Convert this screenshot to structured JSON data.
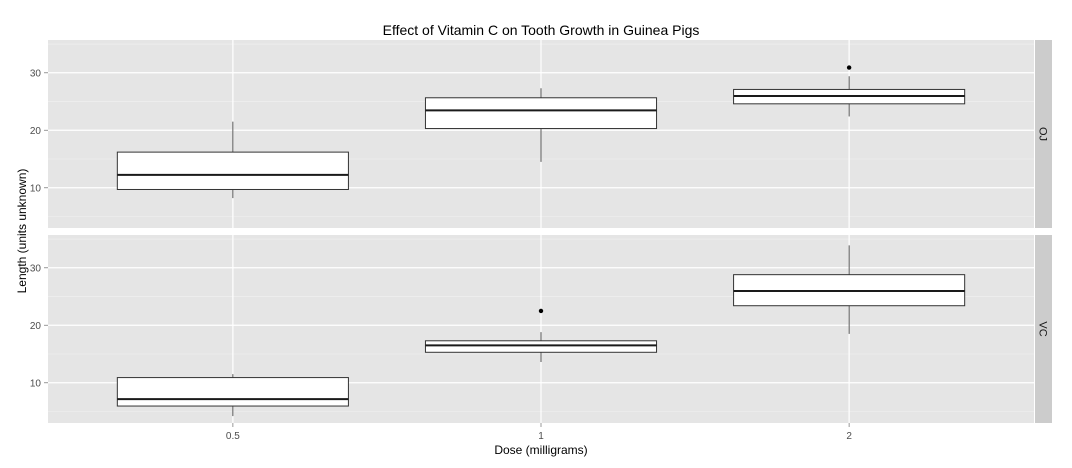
{
  "chart_data": {
    "type": "boxplot",
    "title": "Effect of Vitamin C on Tooth Growth in Guinea Pigs",
    "xlabel": "Dose (milligrams)",
    "ylabel": "Length (units unknown)",
    "categories": [
      "0.5",
      "1",
      "2"
    ],
    "y_ticks": [
      10,
      20,
      30
    ],
    "ylim": [
      3.0,
      35.7
    ],
    "grid": true,
    "facets": [
      {
        "label": "OJ",
        "boxes": [
          {
            "category": "0.5",
            "whisker_low": 8.2,
            "q1": 9.7,
            "median": 12.25,
            "q3": 16.2,
            "whisker_high": 21.5,
            "outliers": []
          },
          {
            "category": "1",
            "whisker_low": 14.5,
            "q1": 20.3,
            "median": 23.45,
            "q3": 25.65,
            "whisker_high": 27.3,
            "outliers": []
          },
          {
            "category": "2",
            "whisker_low": 22.4,
            "q1": 24.6,
            "median": 25.95,
            "q3": 27.1,
            "whisker_high": 29.4,
            "outliers": [
              30.9
            ]
          }
        ]
      },
      {
        "label": "VC",
        "boxes": [
          {
            "category": "0.5",
            "whisker_low": 4.2,
            "q1": 5.95,
            "median": 7.15,
            "q3": 10.9,
            "whisker_high": 11.5,
            "outliers": []
          },
          {
            "category": "1",
            "whisker_low": 13.6,
            "q1": 15.3,
            "median": 16.5,
            "q3": 17.3,
            "whisker_high": 18.8,
            "outliers": [
              22.5
            ]
          },
          {
            "category": "2",
            "whisker_low": 18.5,
            "q1": 23.4,
            "median": 25.95,
            "q3": 28.8,
            "whisker_high": 33.9,
            "outliers": []
          }
        ]
      }
    ]
  }
}
